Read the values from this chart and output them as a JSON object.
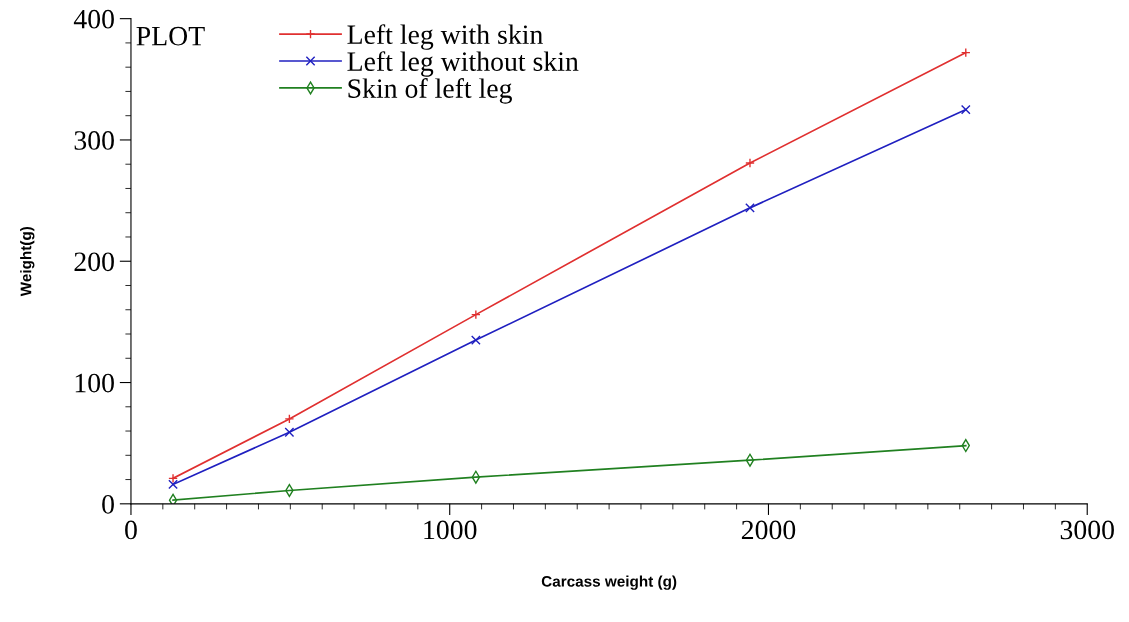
{
  "chart_data": {
    "type": "line",
    "xlabel": "Carcass weight (g)",
    "ylabel": "Weight(g)",
    "legend_title": "PLOT",
    "legend": "top left",
    "x": [
      132,
      497,
      1082,
      1942,
      2619
    ],
    "series": [
      {
        "name": "Left leg with skin",
        "color": "#e03030",
        "marker": "plus",
        "values": [
          21,
          70,
          156,
          281,
          372
        ]
      },
      {
        "name": "Left leg without skin",
        "color": "#2020c0",
        "marker": "cross",
        "values": [
          16,
          59,
          135,
          244,
          325
        ]
      },
      {
        "name": "Skin of left leg",
        "color": "#208020",
        "marker": "diamond",
        "values": [
          3,
          11,
          22,
          36,
          48
        ]
      }
    ],
    "xlim": [
      0,
      3000
    ],
    "xticks": [
      0,
      1000,
      2000,
      3000
    ],
    "ylim": [
      0,
      400
    ],
    "yticks": [
      0,
      100,
      200,
      300,
      400
    ],
    "grid": false,
    "line_style": "solid"
  }
}
